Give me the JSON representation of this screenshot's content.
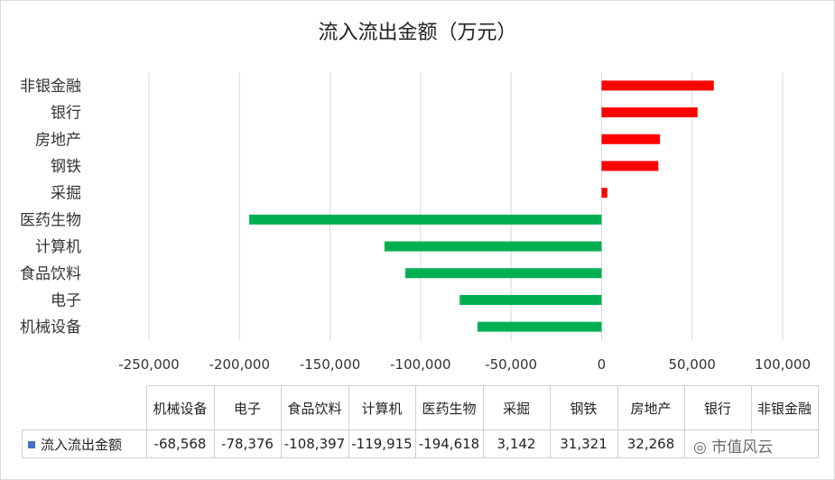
{
  "chart_data": {
    "type": "bar",
    "orientation": "horizontal",
    "title": "流入流出金额（万元）",
    "categories": [
      "非银金融",
      "银行",
      "房地产",
      "钢铁",
      "采掘",
      "医药生物",
      "计算机",
      "食品饮料",
      "电子",
      "机械设备"
    ],
    "series": [
      {
        "name": "流入流出金额",
        "values": [
          62000,
          53000,
          32268,
          31321,
          3142,
          -194618,
          -119915,
          -108397,
          -78376,
          -68568
        ]
      }
    ],
    "xlim": [
      -250000,
      100000
    ],
    "xticks": [
      "-250,000",
      "-200,000",
      "-150,000",
      "-100,000",
      "-50,000",
      "0",
      "50,000",
      "100,000"
    ],
    "grid": true,
    "colors": {
      "positive": "#ff0000",
      "negative": "#00b050",
      "legend_key": "#4472c4"
    }
  },
  "table": {
    "headers": [
      "机械设备",
      "电子",
      "食品饮料",
      "计算机",
      "医药生物",
      "采掘",
      "钢铁",
      "房地产",
      "银行",
      "非银金融"
    ],
    "series_label": "流入流出金额",
    "values": [
      "-68,568",
      "-78,376",
      "-108,397",
      "-119,915",
      "-194,618",
      "3,142",
      "31,321",
      "32,268",
      "",
      ""
    ]
  },
  "watermark": "市值风云"
}
